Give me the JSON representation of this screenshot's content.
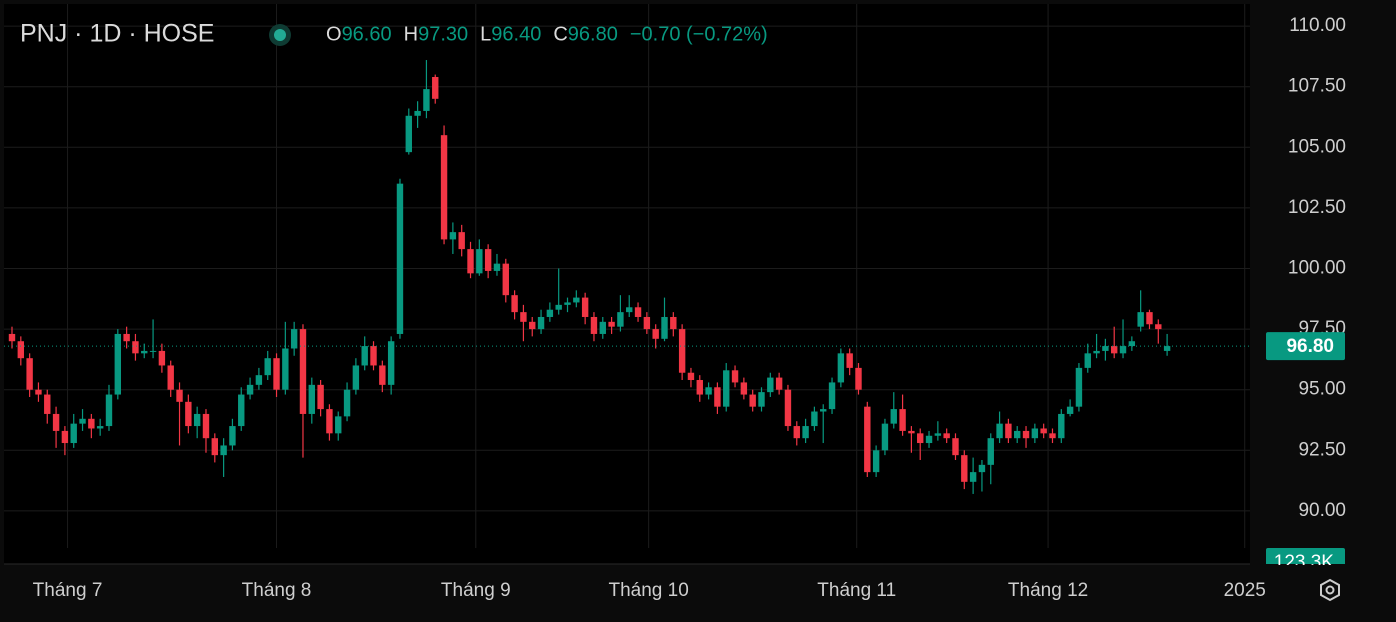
{
  "chart_data": {
    "type": "candlestick",
    "header": {
      "symbol": "PNJ · 1D · HOSE",
      "legend": [
        {
          "key": "O",
          "value": "96.60"
        },
        {
          "key": "H",
          "value": "97.30"
        },
        {
          "key": "L",
          "value": "96.40"
        },
        {
          "key": "C",
          "value": "96.80"
        }
      ],
      "change": "−0.70 (−0.72%)"
    },
    "up_color": "#089981",
    "down_color": "#f23645",
    "xlim": [
      -1.36,
      140.4
    ],
    "xticks": [
      {
        "value": 6.3,
        "label": "Tháng 7"
      },
      {
        "value": 30,
        "label": "Tháng 8"
      },
      {
        "value": 52.6,
        "label": "Tháng 9"
      },
      {
        "value": 72.2,
        "label": "Tháng 10"
      },
      {
        "value": 95.8,
        "label": "Tháng 11"
      },
      {
        "value": 117.5,
        "label": "Tháng 12"
      },
      {
        "value": 139.8,
        "label": "2025"
      }
    ],
    "ylim": [
      88.8,
      110.87
    ],
    "yticks": [
      {
        "value": 90,
        "label": "90.00"
      },
      {
        "value": 92.5,
        "label": "92.50"
      },
      {
        "value": 95,
        "label": "95.00"
      },
      {
        "value": 97.5,
        "label": "97.50"
      },
      {
        "value": 100,
        "label": "100.00"
      },
      {
        "value": 102.5,
        "label": "102.50"
      },
      {
        "value": 105,
        "label": "105.00"
      },
      {
        "value": 107.5,
        "label": "107.50"
      },
      {
        "value": 110,
        "label": "110.00"
      }
    ],
    "grid": true,
    "last_label": "96.80",
    "volume_label": "123.3K",
    "ohlc": [
      [
        97.3,
        97.6,
        96.7,
        97.0
      ],
      [
        97.0,
        97.2,
        96.0,
        96.3
      ],
      [
        96.3,
        96.5,
        94.7,
        95.0
      ],
      [
        95.0,
        95.3,
        94.5,
        94.8
      ],
      [
        94.8,
        95.0,
        93.6,
        94.0
      ],
      [
        94.0,
        94.3,
        92.6,
        93.3
      ],
      [
        93.3,
        93.5,
        92.3,
        92.8
      ],
      [
        92.8,
        94.0,
        92.6,
        93.6
      ],
      [
        93.6,
        94.2,
        93.3,
        93.8
      ],
      [
        93.8,
        94.0,
        93.0,
        93.4
      ],
      [
        93.4,
        93.8,
        93.1,
        93.5
      ],
      [
        93.5,
        95.2,
        93.3,
        94.8
      ],
      [
        94.8,
        97.5,
        94.6,
        97.3
      ],
      [
        97.3,
        97.6,
        96.7,
        97.0
      ],
      [
        97.0,
        97.3,
        96.2,
        96.5
      ],
      [
        96.5,
        96.9,
        96.3,
        96.6
      ],
      [
        96.6,
        97.9,
        96.3,
        96.6
      ],
      [
        96.6,
        96.9,
        95.7,
        96.0
      ],
      [
        96.0,
        96.2,
        94.7,
        95.0
      ],
      [
        95.0,
        95.3,
        92.7,
        94.5
      ],
      [
        94.5,
        94.8,
        93.2,
        93.5
      ],
      [
        93.5,
        94.3,
        93.0,
        94.0
      ],
      [
        94.0,
        94.2,
        92.4,
        93.0
      ],
      [
        93.0,
        93.2,
        92.0,
        92.3
      ],
      [
        92.3,
        93.0,
        91.4,
        92.7
      ],
      [
        92.7,
        93.8,
        92.5,
        93.5
      ],
      [
        93.5,
        95.1,
        93.3,
        94.8
      ],
      [
        94.8,
        95.5,
        94.6,
        95.2
      ],
      [
        95.2,
        95.9,
        95.0,
        95.6
      ],
      [
        95.6,
        96.6,
        95.4,
        96.3
      ],
      [
        96.3,
        96.5,
        94.7,
        95.0
      ],
      [
        95.0,
        97.8,
        94.8,
        96.7
      ],
      [
        96.7,
        97.8,
        96.4,
        97.5
      ],
      [
        97.5,
        97.7,
        92.2,
        94.0
      ],
      [
        94.0,
        95.5,
        93.6,
        95.2
      ],
      [
        95.2,
        95.4,
        93.9,
        94.2
      ],
      [
        94.2,
        94.4,
        92.9,
        93.2
      ],
      [
        93.2,
        94.1,
        92.9,
        93.9
      ],
      [
        93.9,
        95.3,
        93.7,
        95.0
      ],
      [
        95.0,
        96.3,
        94.8,
        96.0
      ],
      [
        96.0,
        97.2,
        95.8,
        96.8
      ],
      [
        96.8,
        97.0,
        95.8,
        96.0
      ],
      [
        96.0,
        96.2,
        94.9,
        95.2
      ],
      [
        95.2,
        97.2,
        94.8,
        97.0
      ],
      [
        97.3,
        103.7,
        97.1,
        103.5
      ],
      [
        104.8,
        106.6,
        104.7,
        106.3
      ],
      [
        106.3,
        106.9,
        105.8,
        106.5
      ],
      [
        106.5,
        108.6,
        106.2,
        107.4
      ],
      [
        107.9,
        108.0,
        106.8,
        107.0
      ],
      [
        105.5,
        105.9,
        101.0,
        101.2
      ],
      [
        101.2,
        101.9,
        100.6,
        101.5
      ],
      [
        101.5,
        101.8,
        100.5,
        100.8
      ],
      [
        100.8,
        101.1,
        99.6,
        99.8
      ],
      [
        99.8,
        101.2,
        99.7,
        100.8
      ],
      [
        100.8,
        101.0,
        99.6,
        99.9
      ],
      [
        99.9,
        100.6,
        99.7,
        100.2
      ],
      [
        100.2,
        100.4,
        98.6,
        98.9
      ],
      [
        98.9,
        99.1,
        97.9,
        98.2
      ],
      [
        98.2,
        98.5,
        97.0,
        97.8
      ],
      [
        97.8,
        98.0,
        97.2,
        97.5
      ],
      [
        97.5,
        98.3,
        97.3,
        98.0
      ],
      [
        98.0,
        98.6,
        97.8,
        98.3
      ],
      [
        98.3,
        100.0,
        98.1,
        98.5
      ],
      [
        98.5,
        98.8,
        98.2,
        98.6
      ],
      [
        98.6,
        99.1,
        98.4,
        98.8
      ],
      [
        98.8,
        99.0,
        97.7,
        98.0
      ],
      [
        98.0,
        98.2,
        97.0,
        97.3
      ],
      [
        97.3,
        98.0,
        97.1,
        97.8
      ],
      [
        97.8,
        98.0,
        97.3,
        97.6
      ],
      [
        97.6,
        98.9,
        97.4,
        98.2
      ],
      [
        98.2,
        98.9,
        98.0,
        98.4
      ],
      [
        98.4,
        98.6,
        97.8,
        98.0
      ],
      [
        98.0,
        98.2,
        97.3,
        97.5
      ],
      [
        97.5,
        97.7,
        96.7,
        97.1
      ],
      [
        97.1,
        98.8,
        97.0,
        98.0
      ],
      [
        98.0,
        98.2,
        97.2,
        97.5
      ],
      [
        97.5,
        97.7,
        95.4,
        95.7
      ],
      [
        95.7,
        95.9,
        95.1,
        95.4
      ],
      [
        95.4,
        95.6,
        94.5,
        94.8
      ],
      [
        94.8,
        95.3,
        94.6,
        95.1
      ],
      [
        95.1,
        95.3,
        94.0,
        94.3
      ],
      [
        94.3,
        96.1,
        94.1,
        95.8
      ],
      [
        95.8,
        96.0,
        95.1,
        95.3
      ],
      [
        95.3,
        95.5,
        94.6,
        94.8
      ],
      [
        94.8,
        95.0,
        94.1,
        94.3
      ],
      [
        94.3,
        95.1,
        94.1,
        94.9
      ],
      [
        94.9,
        95.7,
        94.7,
        95.5
      ],
      [
        95.5,
        95.7,
        94.8,
        95.0
      ],
      [
        95.0,
        95.2,
        93.3,
        93.5
      ],
      [
        93.5,
        93.7,
        92.7,
        93.0
      ],
      [
        93.0,
        93.8,
        92.8,
        93.5
      ],
      [
        93.5,
        94.3,
        93.3,
        94.1
      ],
      [
        94.1,
        94.4,
        92.8,
        94.2
      ],
      [
        94.2,
        95.5,
        94.0,
        95.3
      ],
      [
        95.3,
        96.7,
        95.1,
        96.5
      ],
      [
        96.5,
        96.7,
        95.6,
        95.9
      ],
      [
        95.9,
        96.1,
        94.8,
        95.0
      ],
      [
        94.3,
        94.5,
        91.4,
        91.6
      ],
      [
        91.6,
        92.7,
        91.4,
        92.5
      ],
      [
        92.5,
        93.8,
        92.3,
        93.6
      ],
      [
        93.6,
        94.9,
        93.4,
        94.2
      ],
      [
        94.2,
        94.8,
        93.1,
        93.3
      ],
      [
        93.3,
        93.5,
        92.4,
        93.2
      ],
      [
        93.2,
        93.4,
        92.1,
        92.8
      ],
      [
        92.8,
        93.3,
        92.6,
        93.1
      ],
      [
        93.1,
        93.7,
        92.9,
        93.2
      ],
      [
        93.2,
        93.4,
        92.8,
        93.0
      ],
      [
        93.0,
        93.2,
        92.1,
        92.3
      ],
      [
        92.3,
        92.5,
        90.9,
        91.2
      ],
      [
        91.2,
        92.2,
        90.7,
        91.6
      ],
      [
        91.6,
        92.1,
        90.8,
        91.9
      ],
      [
        91.9,
        93.2,
        91.1,
        93.0
      ],
      [
        93.0,
        94.1,
        92.8,
        93.6
      ],
      [
        93.6,
        93.8,
        92.8,
        93.0
      ],
      [
        93.0,
        93.5,
        92.8,
        93.3
      ],
      [
        93.3,
        93.5,
        92.6,
        93.0
      ],
      [
        93.0,
        93.6,
        92.8,
        93.4
      ],
      [
        93.4,
        93.6,
        93.0,
        93.2
      ],
      [
        93.2,
        93.4,
        92.8,
        93.0
      ],
      [
        93.0,
        94.2,
        92.8,
        94.0
      ],
      [
        94.0,
        94.6,
        93.9,
        94.3
      ],
      [
        94.3,
        96.1,
        94.1,
        95.9
      ],
      [
        95.9,
        96.9,
        95.7,
        96.5
      ],
      [
        96.5,
        97.3,
        96.3,
        96.6
      ],
      [
        96.6,
        97.1,
        96.2,
        96.8
      ],
      [
        96.8,
        97.6,
        96.3,
        96.5
      ],
      [
        96.5,
        97.9,
        96.3,
        96.8
      ],
      [
        96.8,
        97.2,
        96.6,
        97.0
      ],
      [
        97.6,
        99.1,
        97.4,
        98.2
      ],
      [
        98.2,
        98.3,
        97.5,
        97.7
      ],
      [
        97.7,
        97.9,
        96.9,
        97.5
      ],
      [
        96.6,
        97.3,
        96.4,
        96.8
      ]
    ]
  }
}
